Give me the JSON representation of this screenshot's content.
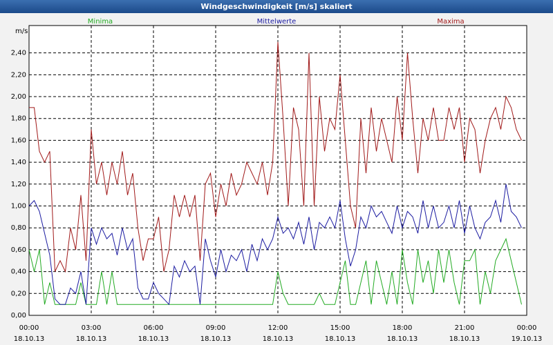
{
  "chart_data": {
    "type": "line",
    "title": "Windgeschwindigkeit [m/s] skaliert",
    "y_label": "m/s",
    "x": [
      "18.10.13 00:00",
      "18.10.13 00:15",
      "18.10.13 00:30",
      "18.10.13 00:45",
      "18.10.13 01:00",
      "18.10.13 01:15",
      "18.10.13 01:30",
      "18.10.13 01:45",
      "18.10.13 02:00",
      "18.10.13 02:15",
      "18.10.13 02:30",
      "18.10.13 02:45",
      "18.10.13 03:00",
      "18.10.13 03:15",
      "18.10.13 03:30",
      "18.10.13 03:45",
      "18.10.13 04:00",
      "18.10.13 04:15",
      "18.10.13 04:30",
      "18.10.13 04:45",
      "18.10.13 05:00",
      "18.10.13 05:15",
      "18.10.13 05:30",
      "18.10.13 05:45",
      "18.10.13 06:00",
      "18.10.13 06:15",
      "18.10.13 06:30",
      "18.10.13 06:45",
      "18.10.13 07:00",
      "18.10.13 07:15",
      "18.10.13 07:30",
      "18.10.13 07:45",
      "18.10.13 08:00",
      "18.10.13 08:15",
      "18.10.13 08:30",
      "18.10.13 08:45",
      "18.10.13 09:00",
      "18.10.13 09:15",
      "18.10.13 09:30",
      "18.10.13 09:45",
      "18.10.13 10:00",
      "18.10.13 10:15",
      "18.10.13 10:30",
      "18.10.13 10:45",
      "18.10.13 11:00",
      "18.10.13 11:15",
      "18.10.13 11:30",
      "18.10.13 11:45",
      "18.10.13 12:00",
      "18.10.13 12:15",
      "18.10.13 12:30",
      "18.10.13 12:45",
      "18.10.13 13:00",
      "18.10.13 13:15",
      "18.10.13 13:30",
      "18.10.13 13:45",
      "18.10.13 14:00",
      "18.10.13 14:15",
      "18.10.13 14:30",
      "18.10.13 14:45",
      "18.10.13 15:00",
      "18.10.13 15:15",
      "18.10.13 15:30",
      "18.10.13 15:45",
      "18.10.13 16:00",
      "18.10.13 16:15",
      "18.10.13 16:30",
      "18.10.13 16:45",
      "18.10.13 17:00",
      "18.10.13 17:15",
      "18.10.13 17:30",
      "18.10.13 17:45",
      "18.10.13 18:00",
      "18.10.13 18:15",
      "18.10.13 18:30",
      "18.10.13 18:45",
      "18.10.13 19:00",
      "18.10.13 19:15",
      "18.10.13 19:30",
      "18.10.13 19:45",
      "18.10.13 20:00",
      "18.10.13 20:15",
      "18.10.13 20:30",
      "18.10.13 20:45",
      "18.10.13 21:00",
      "18.10.13 21:15",
      "18.10.13 21:30",
      "18.10.13 21:45",
      "18.10.13 22:00",
      "18.10.13 22:15",
      "18.10.13 22:30",
      "18.10.13 22:45",
      "18.10.13 23:00",
      "18.10.13 23:15",
      "18.10.13 23:30",
      "18.10.13 23:45"
    ],
    "series": [
      {
        "name": "Minima",
        "color": "#22aa22",
        "values": [
          0.6,
          0.4,
          0.6,
          0.1,
          0.3,
          0.1,
          0.1,
          0.1,
          0.1,
          0.1,
          0.3,
          0.1,
          0.1,
          0.1,
          0.4,
          0.1,
          0.4,
          0.1,
          0.1,
          0.1,
          0.1,
          0.1,
          0.1,
          0.1,
          0.1,
          0.1,
          0.1,
          0.1,
          0.1,
          0.1,
          0.1,
          0.1,
          0.1,
          0.1,
          0.1,
          0.1,
          0.1,
          0.1,
          0.1,
          0.1,
          0.1,
          0.1,
          0.1,
          0.1,
          0.1,
          0.1,
          0.1,
          0.1,
          0.4,
          0.2,
          0.1,
          0.1,
          0.1,
          0.1,
          0.1,
          0.1,
          0.2,
          0.1,
          0.1,
          0.1,
          0.3,
          0.5,
          0.1,
          0.1,
          0.3,
          0.5,
          0.1,
          0.5,
          0.3,
          0.1,
          0.4,
          0.1,
          0.6,
          0.3,
          0.1,
          0.6,
          0.3,
          0.5,
          0.2,
          0.6,
          0.3,
          0.6,
          0.3,
          0.1,
          0.5,
          0.5,
          0.6,
          0.1,
          0.4,
          0.2,
          0.5,
          0.6,
          0.7,
          0.5,
          0.3,
          0.1
        ]
      },
      {
        "name": "Mittelwerte",
        "color": "#1a1aa0",
        "values": [
          1.0,
          1.05,
          0.95,
          0.75,
          0.55,
          0.15,
          0.1,
          0.1,
          0.25,
          0.2,
          0.4,
          0.1,
          0.8,
          0.65,
          0.8,
          0.7,
          0.75,
          0.55,
          0.8,
          0.6,
          0.7,
          0.25,
          0.15,
          0.15,
          0.3,
          0.2,
          0.15,
          0.1,
          0.45,
          0.35,
          0.5,
          0.4,
          0.45,
          0.1,
          0.7,
          0.5,
          0.35,
          0.6,
          0.4,
          0.55,
          0.5,
          0.6,
          0.4,
          0.65,
          0.5,
          0.7,
          0.6,
          0.7,
          0.9,
          0.75,
          0.8,
          0.7,
          0.85,
          0.65,
          0.9,
          0.6,
          0.85,
          0.8,
          0.9,
          0.8,
          1.05,
          0.7,
          0.45,
          0.6,
          0.9,
          0.8,
          1.0,
          0.9,
          0.95,
          0.85,
          0.75,
          1.0,
          0.8,
          0.95,
          0.9,
          0.75,
          1.05,
          0.8,
          1.0,
          0.8,
          0.85,
          1.0,
          0.8,
          1.05,
          0.75,
          1.0,
          0.8,
          0.7,
          0.85,
          0.9,
          1.05,
          0.85,
          1.2,
          0.95,
          0.9,
          0.8
        ]
      },
      {
        "name": "Maxima",
        "color": "#a01818",
        "values": [
          1.9,
          1.9,
          1.5,
          1.4,
          1.5,
          0.4,
          0.5,
          0.4,
          0.8,
          0.6,
          1.1,
          0.5,
          1.7,
          1.2,
          1.4,
          1.1,
          1.4,
          1.2,
          1.5,
          1.1,
          1.3,
          0.8,
          0.5,
          0.7,
          0.7,
          0.9,
          0.4,
          0.6,
          1.1,
          0.9,
          1.1,
          0.9,
          1.1,
          0.5,
          1.2,
          1.3,
          0.9,
          1.2,
          1.0,
          1.3,
          1.1,
          1.2,
          1.4,
          1.3,
          1.2,
          1.4,
          1.1,
          1.4,
          2.5,
          1.8,
          1.0,
          1.9,
          1.7,
          1.0,
          2.4,
          1.0,
          2.0,
          1.5,
          1.8,
          1.7,
          2.2,
          1.6,
          1.0,
          0.8,
          1.8,
          1.3,
          1.9,
          1.5,
          1.8,
          1.6,
          1.4,
          2.0,
          1.6,
          2.4,
          1.8,
          1.3,
          1.8,
          1.6,
          1.9,
          1.6,
          1.6,
          1.9,
          1.7,
          1.9,
          1.4,
          1.8,
          1.7,
          1.3,
          1.6,
          1.8,
          1.9,
          1.7,
          2.0,
          1.9,
          1.7,
          1.6
        ]
      }
    ],
    "xlim": [
      "18.10.13 00:00",
      "19.10.13 00:00"
    ],
    "xticks": [
      {
        "value": "18.10.13 00:00",
        "label": [
          "00:00",
          "18.10.13"
        ]
      },
      {
        "value": "18.10.13 03:00",
        "label": [
          "03:00",
          "18.10.13"
        ]
      },
      {
        "value": "18.10.13 06:00",
        "label": [
          "06:00",
          "18.10.13"
        ]
      },
      {
        "value": "18.10.13 09:00",
        "label": [
          "09:00",
          "18.10.13"
        ]
      },
      {
        "value": "18.10.13 12:00",
        "label": [
          "12:00",
          "18.10.13"
        ]
      },
      {
        "value": "18.10.13 15:00",
        "label": [
          "15:00",
          "18.10.13"
        ]
      },
      {
        "value": "18.10.13 18:00",
        "label": [
          "18:00",
          "18.10.13"
        ]
      },
      {
        "value": "18.10.13 21:00",
        "label": [
          "21:00",
          "18.10.13"
        ]
      },
      {
        "value": "19.10.13 00:00",
        "label": [
          "00:00",
          "19.10.13"
        ]
      }
    ],
    "ylim": [
      0,
      2.65
    ],
    "yticks": [
      {
        "value": 0,
        "label": "0,00"
      },
      {
        "value": 0.2,
        "label": "0,20"
      },
      {
        "value": 0.4,
        "label": "0,40"
      },
      {
        "value": 0.6,
        "label": "0,60"
      },
      {
        "value": 0.8,
        "label": "0,80"
      },
      {
        "value": 1,
        "label": "1,00"
      },
      {
        "value": 1.2,
        "label": "1,20"
      },
      {
        "value": 1.4,
        "label": "1,40"
      },
      {
        "value": 1.6,
        "label": "1,60"
      },
      {
        "value": 1.8,
        "label": "1,80"
      },
      {
        "value": 2,
        "label": "2,00"
      },
      {
        "value": 2.2,
        "label": "2,20"
      },
      {
        "value": 2.4,
        "label": "2,40"
      }
    ],
    "grid": true
  }
}
